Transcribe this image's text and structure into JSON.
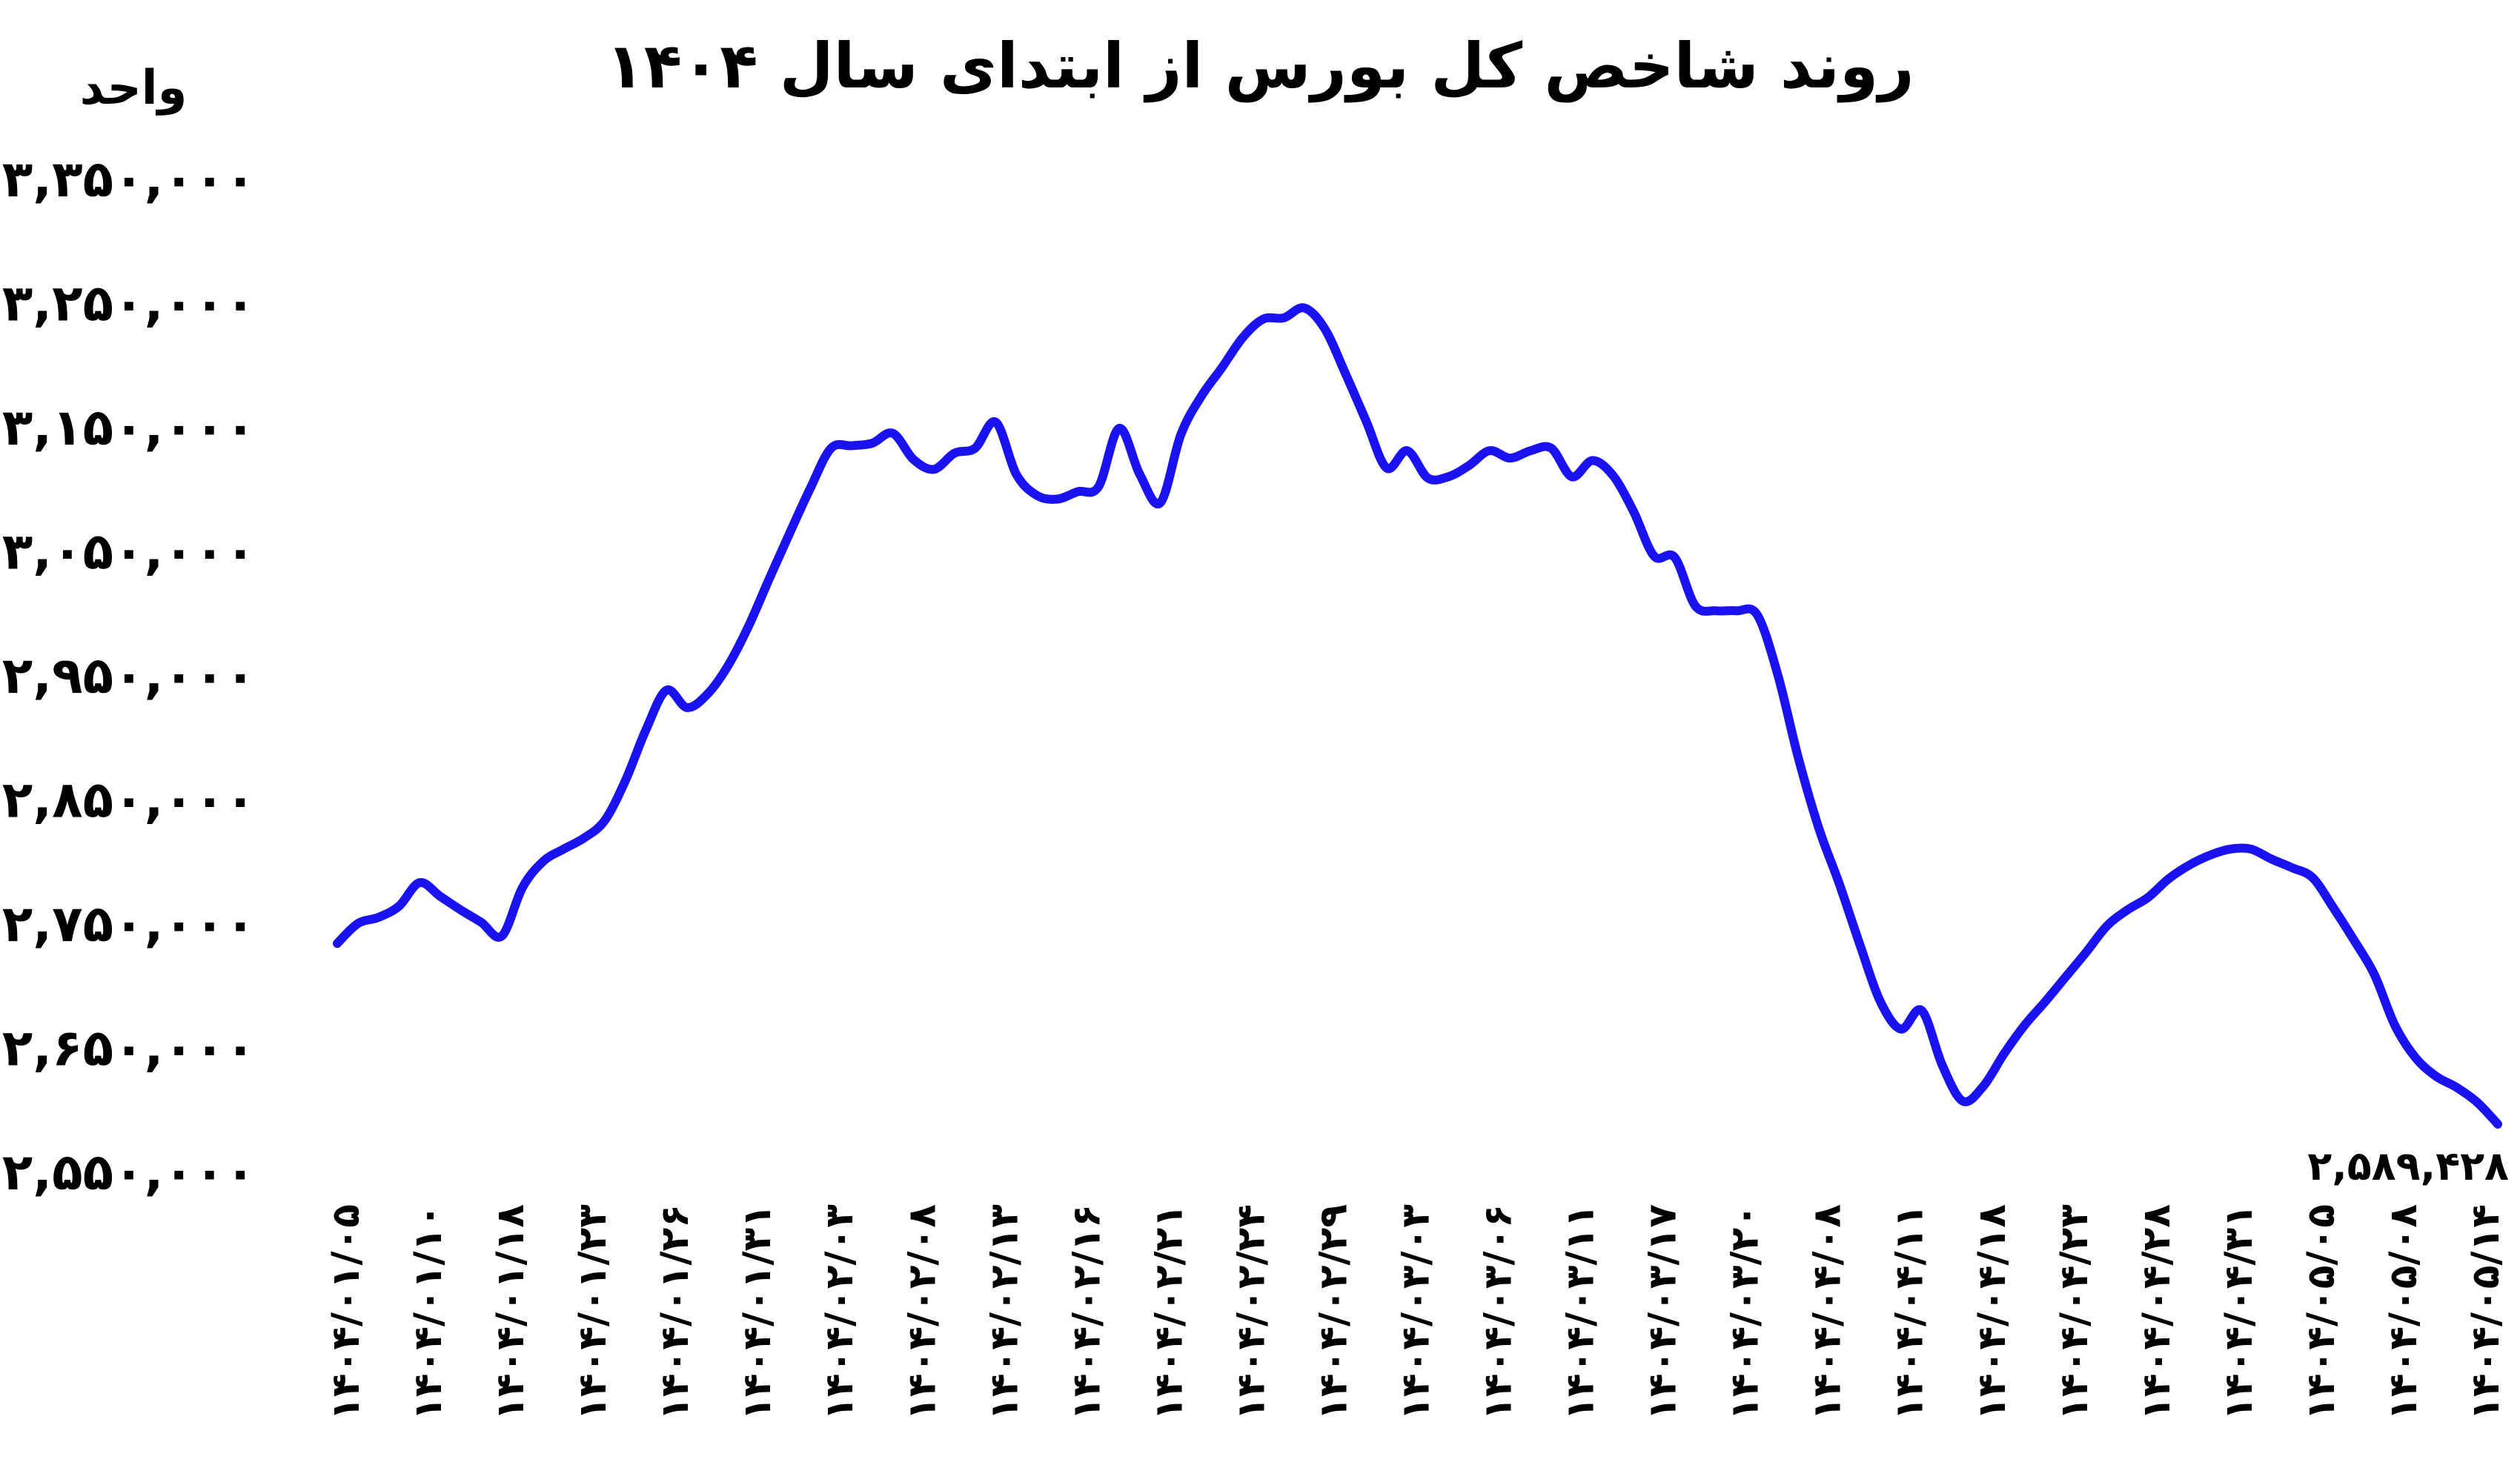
{
  "chart_data": {
    "type": "line",
    "title": "روند شاخص کل بورس از ابتدای سال ۱۴۰۴",
    "ylabel": "واحد",
    "xlabel": "",
    "ylim": [
      2550000,
      3350000
    ],
    "yticks": [
      2550000,
      2650000,
      2750000,
      2850000,
      2950000,
      3050000,
      3150000,
      3250000,
      3350000
    ],
    "ytick_labels": [
      "۲,۵۵۰,۰۰۰",
      "۲,۶۵۰,۰۰۰",
      "۲,۷۵۰,۰۰۰",
      "۲,۸۵۰,۰۰۰",
      "۲,۹۵۰,۰۰۰",
      "۳,۰۵۰,۰۰۰",
      "۳,۱۵۰,۰۰۰",
      "۳,۲۵۰,۰۰۰",
      "۳,۳۵۰,۰۰۰"
    ],
    "xtick_labels": [
      "۱۴۰۴/۰۱/۰۵",
      "۱۴۰۴/۰۱/۱۰",
      "۱۴۰۴/۰۱/۱۸",
      "۱۴۰۴/۰۱/۲۳",
      "۱۴۰۴/۰۱/۲۶",
      "۱۴۰۴/۰۱/۳۱",
      "۱۴۰۴/۰۲/۰۳",
      "۱۴۰۴/۰۲/۰۸",
      "۱۴۰۴/۰۲/۱۳",
      "۱۴۰۴/۰۲/۱۶",
      "۱۴۰۴/۰۲/۲۱",
      "۱۴۰۴/۰۲/۲۴",
      "۱۴۰۴/۰۲/۲۹",
      "۱۴۰۴/۰۳/۰۳",
      "۱۴۰۴/۰۳/۰۶",
      "۱۴۰۴/۰۳/۱۱",
      "۱۴۰۴/۰۳/۱۷",
      "۱۴۰۴/۰۳/۲۰",
      "۱۴۰۴/۰۴/۰۸",
      "۱۴۰۴/۰۴/۱۱",
      "۱۴۰۴/۰۴/۱۸",
      "۱۴۰۴/۰۴/۲۳",
      "۱۴۰۴/۰۴/۲۸",
      "۱۴۰۴/۰۴/۳۱",
      "۱۴۰۴/۰۵/۰۵",
      "۱۴۰۴/۰۵/۰۸",
      "۱۴۰۴/۰۵/۱۴"
    ],
    "series": [
      {
        "color": "#1a12f0",
        "values": [
          2735000,
          2751000,
          2756000,
          2765000,
          2784000,
          2773000,
          2762000,
          2752000,
          2741000,
          2780000,
          2801000,
          2811000,
          2820000,
          2834000,
          2866000,
          2907000,
          2939000,
          2925000,
          2936000,
          2959000,
          2991000,
          3029000,
          3066000,
          3102000,
          3134000,
          3136000,
          3138000,
          3146000,
          3125000,
          3117000,
          3130000,
          3134000,
          3155000,
          3113000,
          3096000,
          3093000,
          3099000,
          3103000,
          3150000,
          3113000,
          3090000,
          3145000,
          3176000,
          3199000,
          3223000,
          3238000,
          3239000,
          3247000,
          3230000,
          3194000,
          3156000,
          3118000,
          3132000,
          3110000,
          3111000,
          3120000,
          3132000,
          3126000,
          3132000,
          3134000,
          3111000,
          3124000,
          3112000,
          3083000,
          3047000,
          3046000,
          3007000,
          3003000,
          3003000,
          3000000,
          2952000,
          2885000,
          2828000,
          2783000,
          2734000,
          2688000,
          2666000,
          2681000,
          2637000,
          2608000,
          2620000,
          2646000,
          2669000,
          2688000,
          2708000,
          2728000,
          2749000,
          2762000,
          2772000,
          2787000,
          2798000,
          2806000,
          2811000,
          2811000,
          2803000,
          2796000,
          2788000,
          2764000,
          2738000,
          2710000,
          2669000,
          2643000,
          2628000,
          2619000,
          2607000,
          2589428
        ]
      }
    ],
    "last_value_label": "۲,۵۸۹,۴۲۸",
    "grid": false,
    "legend": "none"
  }
}
